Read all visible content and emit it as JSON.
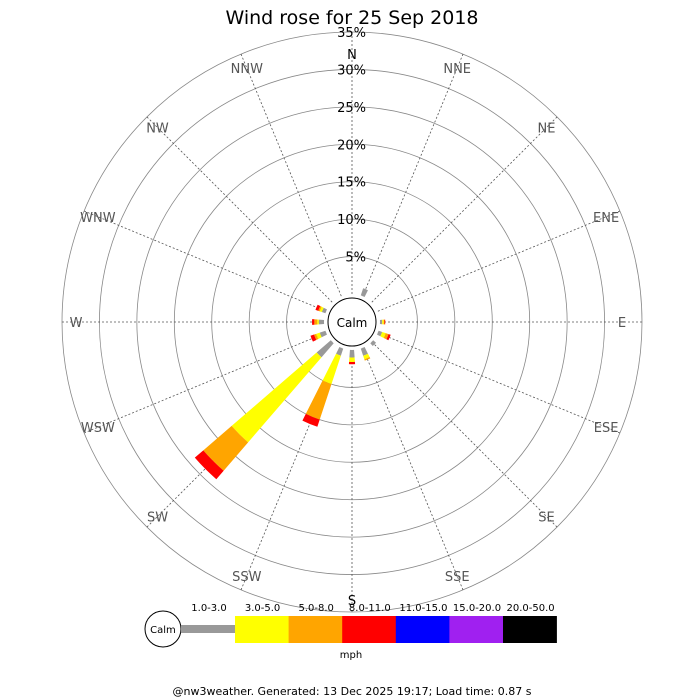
{
  "chart_data": {
    "type": "wind-rose",
    "title": "Wind rose for 25 Sep 2018",
    "center_label": "Calm",
    "directions": [
      "N",
      "NNE",
      "NE",
      "ENE",
      "E",
      "ESE",
      "SE",
      "SSE",
      "S",
      "SSW",
      "SW",
      "WSW",
      "W",
      "WNW",
      "NW",
      "NNW"
    ],
    "radial_ticks": [
      "5%",
      "10%",
      "15%",
      "20%",
      "25%",
      "30%",
      "35%"
    ],
    "radial_values": [
      5,
      10,
      15,
      20,
      25,
      30,
      35
    ],
    "rmax_percent": 35,
    "speed_bins": [
      {
        "label": "1.0-3.0",
        "color": "#999999"
      },
      {
        "label": "3.0-5.0",
        "color": "#ffff00"
      },
      {
        "label": "5.0-8.0",
        "color": "#ffa500"
      },
      {
        "label": "8.0-11.0",
        "color": "#ff0000"
      },
      {
        "label": "11.0-15.0",
        "color": "#0000ff"
      },
      {
        "label": "15.0-20.0",
        "color": "#a020f0"
      },
      {
        "label": "20.0-50.0",
        "color": "#000000"
      }
    ],
    "units_label": "mph",
    "calm_legend_label": "Calm",
    "data_percent": {
      "NNE": [
        1.0,
        0,
        0,
        0,
        0,
        0,
        0
      ],
      "E": [
        0.3,
        0.2,
        0.1,
        0.1,
        0,
        0,
        0
      ],
      "ESE": [
        0.5,
        0.5,
        0.4,
        0.3,
        0,
        0,
        0
      ],
      "SE": [
        0.5,
        0,
        0,
        0,
        0,
        0,
        0
      ],
      "SSE": [
        1.0,
        0.5,
        0.2,
        0,
        0,
        0,
        0
      ],
      "S": [
        1.0,
        0.6,
        0,
        0.3,
        0,
        0,
        0
      ],
      "SSW": [
        1.0,
        4.0,
        5.0,
        1.0,
        0,
        0,
        0
      ],
      "SW": [
        2.5,
        15.0,
        5.0,
        1.5,
        0,
        0,
        0
      ],
      "WSW": [
        0.8,
        0.5,
        0.3,
        0.5,
        0,
        0,
        0
      ],
      "W": [
        0.7,
        0.2,
        0.4,
        0.3,
        0,
        0,
        0
      ],
      "WNW": [
        0.5,
        0.3,
        0.2,
        0.4,
        0,
        0,
        0
      ]
    }
  },
  "footer_text": "@nw3weather. Generated: 13 Dec 2025 19:17; Load time: 0.87 s"
}
